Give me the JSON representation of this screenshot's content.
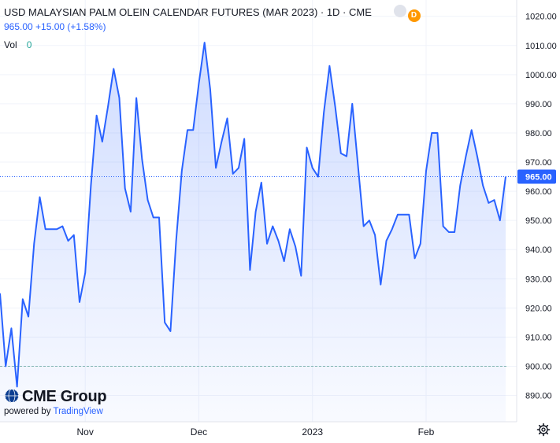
{
  "header": {
    "title": "USD MALAYSIAN PALM OLEIN CALENDAR FUTURES (MAR 2023) · 1D · CME",
    "price_line": "965.00 +15.00 (+1.58%)",
    "vol_label": "Vol",
    "vol_value": "0",
    "status_badge": "D"
  },
  "branding": {
    "logo_text": "CME Group",
    "powered_prefix": "powered by",
    "powered_brand": "TradingView"
  },
  "colors": {
    "line": "#2962ff",
    "fill": "#2962ff",
    "grid": "#f0f3fa",
    "axis_text": "#131722",
    "current_price_bg": "#2962ff",
    "reference_line": "#7fb5b0"
  },
  "icons": [
    "globe-icon",
    "settings-gear-icon"
  ],
  "chart_data": {
    "type": "area",
    "title": "USD MALAYSIAN PALM OLEIN CALENDAR FUTURES (MAR 2023) · 1D · CME",
    "xlabel": "",
    "ylabel": "",
    "ylim": [
      885,
      1022
    ],
    "y_ticks": [
      890,
      900,
      910,
      920,
      930,
      940,
      950,
      960,
      970,
      980,
      990,
      1000,
      1010,
      1020
    ],
    "y_tick_labels": [
      "890.00",
      "900.00",
      "910.00",
      "920.00",
      "930.00",
      "940.00",
      "950.00",
      "960.00",
      "970.00",
      "980.00",
      "990.00",
      "1000.00",
      "1010.00",
      "1020.00"
    ],
    "x_tick_labels": [
      {
        "label": "Nov",
        "index": 15
      },
      {
        "label": "Dec",
        "index": 35
      },
      {
        "label": "2023",
        "index": 55
      },
      {
        "label": "Feb",
        "index": 75
      }
    ],
    "current_price": 965.0,
    "current_price_label": "965.00",
    "reference_value": 900,
    "grid": true,
    "series": [
      {
        "values": [
          925,
          900,
          913,
          893,
          923,
          917,
          942,
          958,
          947,
          947,
          947,
          948,
          943,
          945,
          922,
          932,
          962,
          986,
          977,
          989,
          1002,
          992,
          961,
          953,
          992,
          971,
          957,
          951,
          951,
          915,
          912,
          943,
          967,
          981,
          981,
          997,
          1011,
          995,
          968,
          977,
          985,
          966,
          968,
          978,
          933,
          953,
          963,
          942,
          948,
          943,
          936,
          947,
          941,
          931,
          975,
          968,
          965,
          987,
          1003,
          989,
          973,
          972,
          990,
          969,
          948,
          950,
          945,
          928,
          943,
          947,
          952,
          952,
          952,
          937,
          942,
          967,
          980,
          980,
          948,
          946,
          946,
          962,
          972,
          981,
          972,
          962,
          956,
          957,
          950,
          965
        ]
      }
    ]
  }
}
